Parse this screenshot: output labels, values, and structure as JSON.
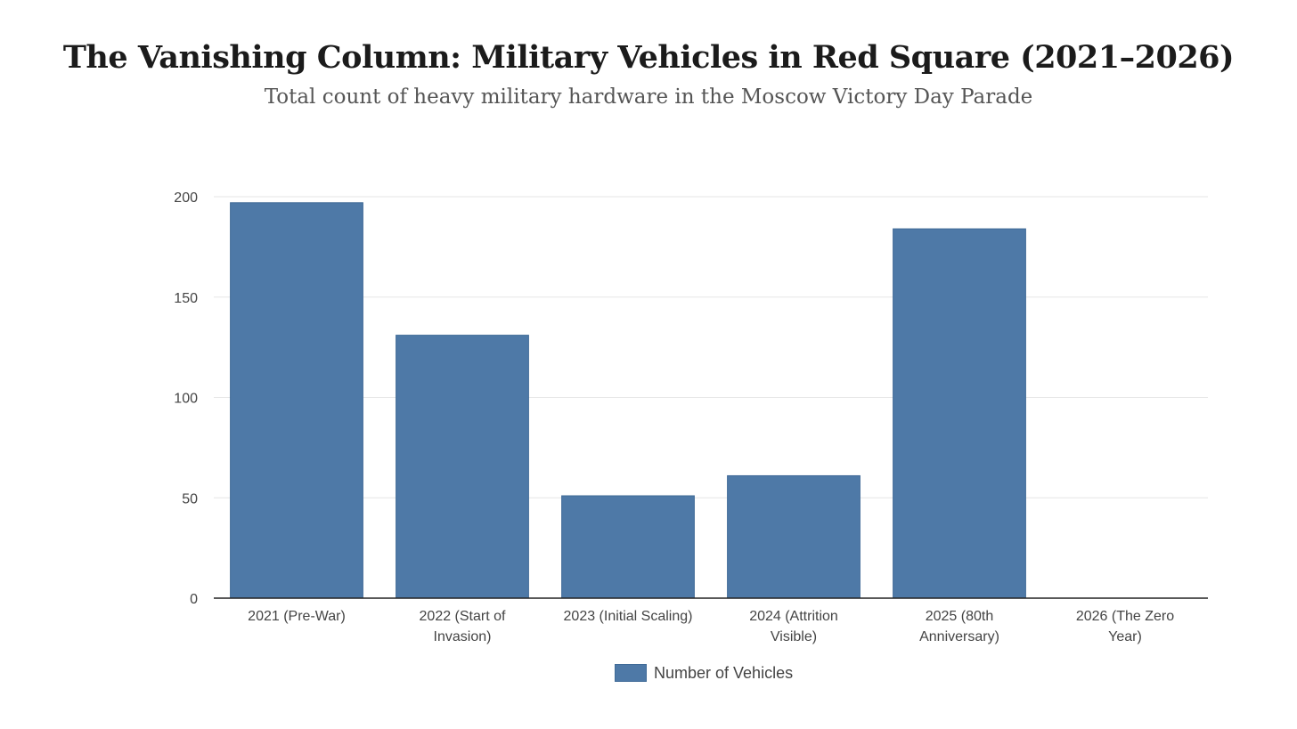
{
  "header": {
    "title": "The Vanishing Column: Military Vehicles in Red Square (2021–2026)",
    "subtitle": "Total count of heavy military hardware in the Moscow Victory Day Parade"
  },
  "colors": {
    "bar": "#4e79a7",
    "grid": "#e6e6e6",
    "axis": "#222222"
  },
  "chart_data": {
    "type": "bar",
    "title": "The Vanishing Column: Military Vehicles in Red Square (2021–2026)",
    "subtitle": "Total count of heavy military hardware in the Moscow Victory Day Parade",
    "categories": [
      "2021 (Pre-War)",
      "2022 (Start of Invasion)",
      "2023 (Initial Scaling)",
      "2024 (Attrition Visible)",
      "2025 (80th Anniversary)",
      "2026 (The Zero Year)"
    ],
    "category_lines": [
      [
        "2021 (Pre-War)"
      ],
      [
        "2022 (Start of",
        "Invasion)"
      ],
      [
        "2023 (Initial Scaling)"
      ],
      [
        "2024 (Attrition",
        "Visible)"
      ],
      [
        "2025 (80th",
        "Anniversary)"
      ],
      [
        "2026 (The Zero",
        "Year)"
      ]
    ],
    "series": [
      {
        "name": "Number of Vehicles",
        "values": [
          197,
          131,
          51,
          61,
          184,
          0
        ]
      }
    ],
    "yticks": [
      0,
      50,
      100,
      150,
      200
    ],
    "ylim": [
      0,
      200
    ],
    "xlabel": "",
    "ylabel": "",
    "grid": true,
    "legend": "bottom"
  }
}
